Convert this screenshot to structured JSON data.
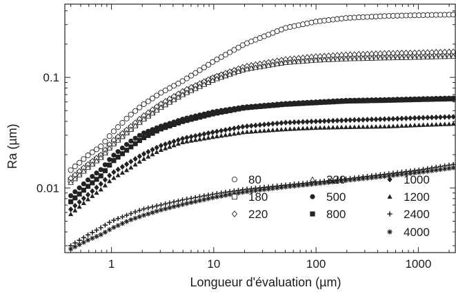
{
  "chart_data": {
    "type": "scatter",
    "title": "",
    "xlabel": "Longueur d'évaluation (µm)",
    "ylabel": "Ra (µm)",
    "xscale": "log",
    "yscale": "log",
    "xlim": [
      0.35,
      2300
    ],
    "ylim": [
      0.0026,
      0.46
    ],
    "grid": false,
    "legend_position": "lower-right, inside plot",
    "x_ticks": [
      {
        "value": 1,
        "label": "1"
      },
      {
        "value": 10,
        "label": "10"
      },
      {
        "value": 100,
        "label": "100"
      },
      {
        "value": 1000,
        "label": "1000"
      }
    ],
    "y_ticks": [
      {
        "value": 0.01,
        "label": "0.01"
      },
      {
        "value": 0.1,
        "label": "0.1"
      }
    ],
    "x": [
      0.4,
      0.6,
      0.8,
      1,
      1.5,
      2,
      3,
      5,
      10,
      20,
      50,
      100,
      200,
      500,
      1000,
      2200
    ],
    "series": [
      {
        "name": "80",
        "marker": "circle-open",
        "values": [
          0.0145,
          0.02,
          0.024,
          0.031,
          0.045,
          0.056,
          0.072,
          0.093,
          0.14,
          0.2,
          0.28,
          0.32,
          0.345,
          0.36,
          0.365,
          0.37
        ]
      },
      {
        "name": "180",
        "marker": "square-open",
        "values": [
          0.0118,
          0.016,
          0.0195,
          0.025,
          0.034,
          0.042,
          0.055,
          0.072,
          0.098,
          0.12,
          0.14,
          0.148,
          0.153,
          0.157,
          0.16,
          0.163
        ]
      },
      {
        "name": "220",
        "marker": "diamond-open",
        "values": [
          0.0122,
          0.0165,
          0.02,
          0.026,
          0.035,
          0.044,
          0.057,
          0.075,
          0.1,
          0.125,
          0.145,
          0.154,
          0.16,
          0.165,
          0.167,
          0.17
        ]
      },
      {
        "name": "320",
        "marker": "triangle-open",
        "values": [
          0.0112,
          0.0155,
          0.019,
          0.024,
          0.033,
          0.041,
          0.053,
          0.07,
          0.095,
          0.118,
          0.136,
          0.143,
          0.147,
          0.15,
          0.152,
          0.155
        ]
      },
      {
        "name": "500",
        "marker": "circle-filled",
        "values": [
          0.0085,
          0.012,
          0.0148,
          0.019,
          0.026,
          0.031,
          0.036,
          0.042,
          0.049,
          0.054,
          0.058,
          0.06,
          0.062,
          0.063,
          0.064,
          0.065
        ]
      },
      {
        "name": "800",
        "marker": "square-filled",
        "values": [
          0.0075,
          0.0105,
          0.013,
          0.017,
          0.023,
          0.028,
          0.034,
          0.04,
          0.047,
          0.053,
          0.057,
          0.059,
          0.061,
          0.062,
          0.063,
          0.064
        ]
      },
      {
        "name": "1000",
        "marker": "diamond-filled",
        "values": [
          0.0064,
          0.0088,
          0.011,
          0.0135,
          0.017,
          0.02,
          0.024,
          0.028,
          0.032,
          0.036,
          0.039,
          0.04,
          0.041,
          0.042,
          0.043,
          0.044
        ]
      },
      {
        "name": "1200",
        "marker": "triangle-filled",
        "values": [
          0.0058,
          0.008,
          0.0098,
          0.012,
          0.015,
          0.018,
          0.022,
          0.026,
          0.029,
          0.032,
          0.034,
          0.035,
          0.0355,
          0.036,
          0.037,
          0.038
        ]
      },
      {
        "name": "2400",
        "marker": "plus",
        "values": [
          0.003,
          0.0038,
          0.0044,
          0.005,
          0.0058,
          0.0064,
          0.007,
          0.0078,
          0.0088,
          0.0097,
          0.0106,
          0.0113,
          0.0121,
          0.0134,
          0.0145,
          0.0163
        ]
      },
      {
        "name": "4000",
        "marker": "asterisk",
        "values": [
          0.0028,
          0.0034,
          0.0038,
          0.0043,
          0.0051,
          0.0056,
          0.0063,
          0.0071,
          0.0082,
          0.0092,
          0.0102,
          0.0109,
          0.0117,
          0.0128,
          0.0138,
          0.0152
        ]
      }
    ]
  }
}
